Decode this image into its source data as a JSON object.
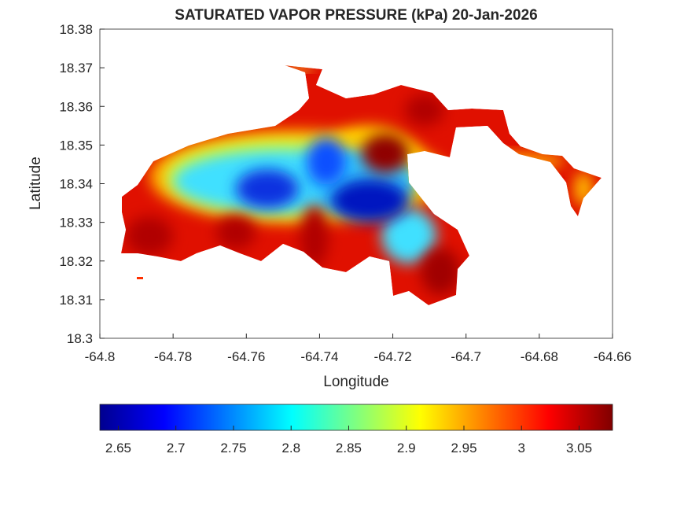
{
  "chart_data": {
    "type": "heatmap",
    "title": "SATURATED VAPOR PRESSURE (kPa) 20-Jan-2026",
    "xlabel": "Longitude",
    "ylabel": "Latitude",
    "xlim": [
      -64.8,
      -64.66
    ],
    "ylim": [
      18.3,
      18.38
    ],
    "xticks": [
      "-64.8",
      "-64.78",
      "-64.76",
      "-64.74",
      "-64.72",
      "-64.7",
      "-64.68",
      "-64.66"
    ],
    "yticks": [
      "18.3",
      "18.31",
      "18.32",
      "18.33",
      "18.34",
      "18.35",
      "18.36",
      "18.37",
      "18.38"
    ],
    "grid": false,
    "colormap": "jet",
    "colorbar": {
      "location": "bottom",
      "clim": [
        2.634,
        3.079
      ],
      "ticks": [
        "2.65",
        "2.7",
        "2.75",
        "2.8",
        "2.85",
        "2.9",
        "2.95",
        "3",
        "3.05"
      ]
    }
  }
}
